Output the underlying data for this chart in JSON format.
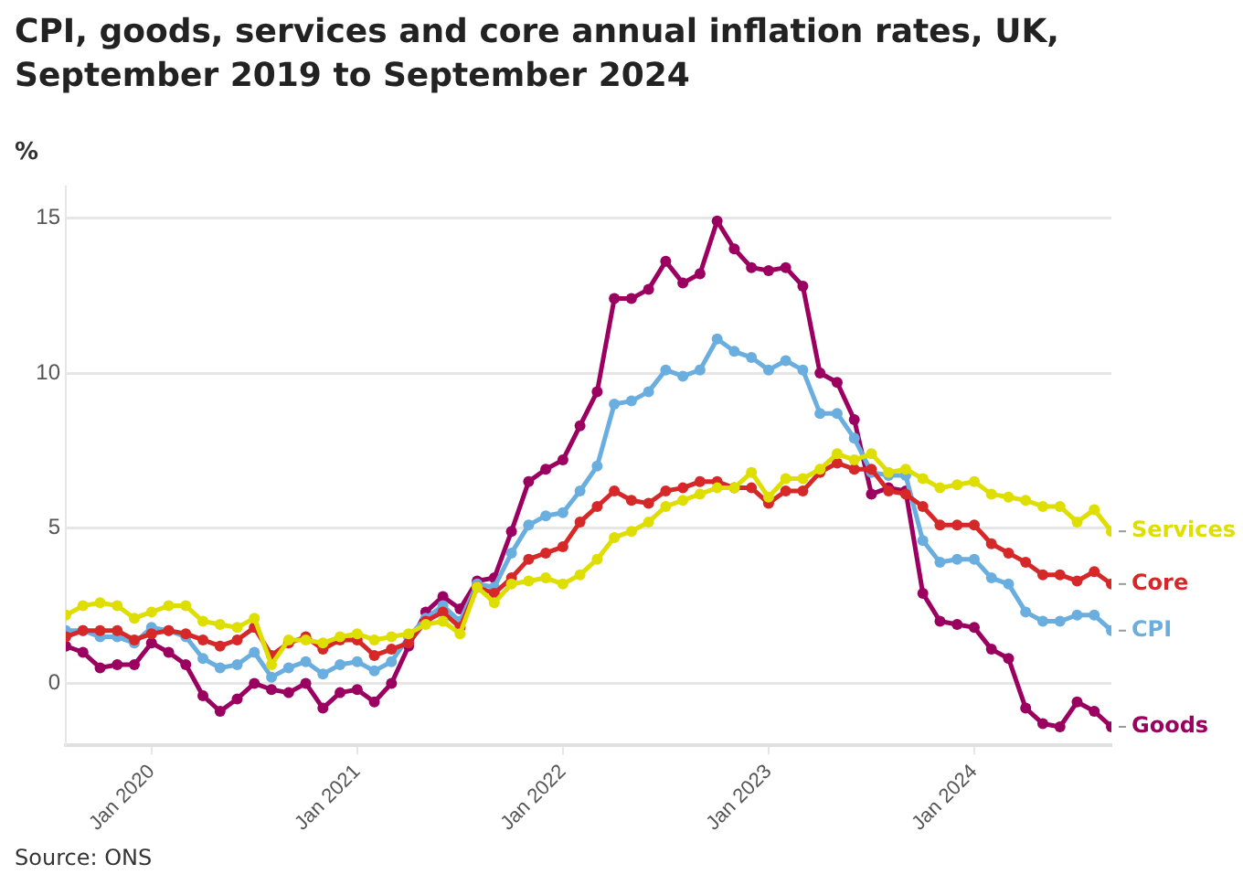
{
  "chart_data": {
    "type": "line",
    "title": "CPI, goods, services and core annual inflation rates, UK, September 2019 to September 2024",
    "ylabel": "%",
    "annotations": [
      "Source: ONS"
    ],
    "x": [
      "2019-08",
      "2019-09",
      "2019-10",
      "2019-11",
      "2019-12",
      "2020-01",
      "2020-02",
      "2020-03",
      "2020-04",
      "2020-05",
      "2020-06",
      "2020-07",
      "2020-08",
      "2020-09",
      "2020-10",
      "2020-11",
      "2020-12",
      "2021-01",
      "2021-02",
      "2021-03",
      "2021-04",
      "2021-05",
      "2021-06",
      "2021-07",
      "2021-08",
      "2021-09",
      "2021-10",
      "2021-11",
      "2021-12",
      "2022-01",
      "2022-02",
      "2022-03",
      "2022-04",
      "2022-05",
      "2022-06",
      "2022-07",
      "2022-08",
      "2022-09",
      "2022-10",
      "2022-11",
      "2022-12",
      "2023-01",
      "2023-02",
      "2023-03",
      "2023-04",
      "2023-05",
      "2023-06",
      "2023-07",
      "2023-08",
      "2023-09",
      "2023-10",
      "2023-11",
      "2023-12",
      "2024-01",
      "2024-02",
      "2024-03",
      "2024-04",
      "2024-05",
      "2024-06",
      "2024-07",
      "2024-08",
      "2024-09"
    ],
    "series": [
      {
        "name": "Services",
        "color": "#dede00",
        "values": [
          2.2,
          2.5,
          2.6,
          2.5,
          2.1,
          2.3,
          2.5,
          2.5,
          2.0,
          1.9,
          1.8,
          2.1,
          0.6,
          1.4,
          1.4,
          1.3,
          1.5,
          1.6,
          1.4,
          1.5,
          1.6,
          1.9,
          2.0,
          1.6,
          3.1,
          2.6,
          3.2,
          3.3,
          3.4,
          3.2,
          3.5,
          4.0,
          4.7,
          4.9,
          5.2,
          5.7,
          5.9,
          6.1,
          6.3,
          6.3,
          6.8,
          6.0,
          6.6,
          6.6,
          6.9,
          7.4,
          7.2,
          7.4,
          6.8,
          6.9,
          6.6,
          6.3,
          6.4,
          6.5,
          6.1,
          6.0,
          5.9,
          5.7,
          5.7,
          5.2,
          5.6,
          4.9
        ]
      },
      {
        "name": "Core",
        "color": "#d62828",
        "values": [
          1.5,
          1.7,
          1.7,
          1.7,
          1.4,
          1.6,
          1.7,
          1.6,
          1.4,
          1.2,
          1.4,
          1.8,
          0.9,
          1.3,
          1.5,
          1.1,
          1.4,
          1.4,
          0.9,
          1.1,
          1.3,
          2.0,
          2.3,
          1.8,
          3.1,
          2.9,
          3.4,
          4.0,
          4.2,
          4.4,
          5.2,
          5.7,
          6.2,
          5.9,
          5.8,
          6.2,
          6.3,
          6.5,
          6.5,
          6.3,
          6.3,
          5.8,
          6.2,
          6.2,
          6.8,
          7.1,
          6.9,
          6.9,
          6.2,
          6.1,
          5.7,
          5.1,
          5.1,
          5.1,
          4.5,
          4.2,
          3.9,
          3.5,
          3.5,
          3.3,
          3.6,
          3.2
        ]
      },
      {
        "name": "CPI",
        "color": "#6aaee0",
        "values": [
          1.7,
          1.7,
          1.5,
          1.5,
          1.3,
          1.8,
          1.7,
          1.5,
          0.8,
          0.5,
          0.6,
          1.0,
          0.2,
          0.5,
          0.7,
          0.3,
          0.6,
          0.7,
          0.4,
          0.7,
          1.5,
          2.1,
          2.5,
          2.0,
          3.2,
          3.1,
          4.2,
          5.1,
          5.4,
          5.5,
          6.2,
          7.0,
          9.0,
          9.1,
          9.4,
          10.1,
          9.9,
          10.1,
          11.1,
          10.7,
          10.5,
          10.1,
          10.4,
          10.1,
          8.7,
          8.7,
          7.9,
          6.8,
          6.7,
          6.7,
          4.6,
          3.9,
          4.0,
          4.0,
          3.4,
          3.2,
          2.3,
          2.0,
          2.0,
          2.2,
          2.2,
          1.7
        ]
      },
      {
        "name": "Goods",
        "color": "#9b0060",
        "values": [
          1.2,
          1.0,
          0.5,
          0.6,
          0.6,
          1.3,
          1.0,
          0.6,
          -0.4,
          -0.9,
          -0.5,
          0.0,
          -0.2,
          -0.3,
          0.0,
          -0.8,
          -0.3,
          -0.2,
          -0.6,
          0.0,
          1.2,
          2.3,
          2.8,
          2.4,
          3.3,
          3.4,
          4.9,
          6.5,
          6.9,
          7.2,
          8.3,
          9.4,
          12.4,
          12.4,
          12.7,
          13.6,
          12.9,
          13.2,
          14.9,
          14.0,
          13.4,
          13.3,
          13.4,
          12.8,
          10.0,
          9.7,
          8.5,
          6.1,
          6.3,
          6.2,
          2.9,
          2.0,
          1.9,
          1.8,
          1.1,
          0.8,
          -0.8,
          -1.3,
          -1.4,
          -0.6,
          -0.9,
          -1.4
        ]
      }
    ],
    "xlim": [
      "2019-08",
      "2024-09"
    ],
    "xticks": [
      {
        "value": "2020-01",
        "label": "Jan 2020"
      },
      {
        "value": "2021-01",
        "label": "Jan 2021"
      },
      {
        "value": "2022-01",
        "label": "Jan 2022"
      },
      {
        "value": "2023-01",
        "label": "Jan 2023"
      },
      {
        "value": "2024-01",
        "label": "Jan 2024"
      }
    ],
    "ylim": [
      -2,
      16
    ],
    "yticks": [
      0,
      5,
      10,
      15
    ],
    "grid": "y",
    "marker": "circle",
    "line_style": "solid"
  }
}
